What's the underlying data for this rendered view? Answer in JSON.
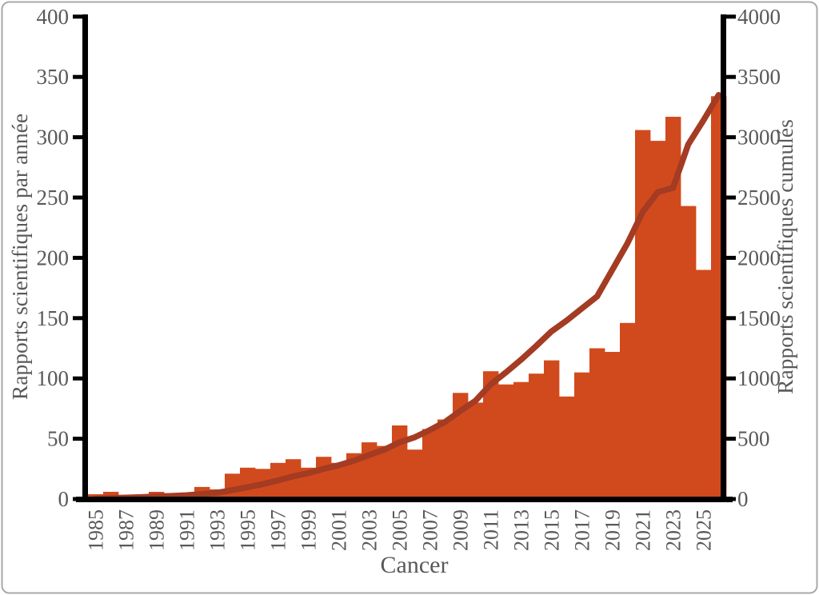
{
  "figure": {
    "x_title": "Cancer",
    "left_axis_title": "Rapports scientifiques par année",
    "right_axis_title": "Rapports scientifiques cumulés"
  },
  "chart_data": {
    "type": "bar",
    "subtype": "bar+line-combo",
    "title": "Cancer",
    "xlabel": "Cancer",
    "ylabel_left": "Rapports scientifiques par année",
    "ylabel_right": "Rapports scientifiques cumulés",
    "grid": false,
    "legend": "none",
    "categories": [
      1985,
      1986,
      1987,
      1988,
      1989,
      1990,
      1991,
      1992,
      1993,
      1994,
      1995,
      1996,
      1997,
      1998,
      1999,
      2000,
      2001,
      2002,
      2003,
      2004,
      2005,
      2006,
      2007,
      2008,
      2009,
      2010,
      2011,
      2012,
      2013,
      2014,
      2015,
      2016,
      2017,
      2018,
      2019,
      2020,
      2021,
      2022,
      2023,
      2024,
      2025,
      2026
    ],
    "x_tick_labels": [
      "1985",
      "1987",
      "1989",
      "1991",
      "1993",
      "1995",
      "1997",
      "1999",
      "2001",
      "2003",
      "2005",
      "2007",
      "2009",
      "2011",
      "2013",
      "2015",
      "2017",
      "2019",
      "2021",
      "2023",
      "2025"
    ],
    "series": [
      {
        "name": "Rapports scientifiques par année",
        "type": "bar",
        "axis": "left",
        "values": [
          4,
          6,
          3,
          3,
          6,
          4,
          5,
          10,
          8,
          21,
          26,
          25,
          30,
          33,
          26,
          35,
          30,
          38,
          47,
          44,
          61,
          41,
          58,
          66,
          88,
          80,
          106,
          95,
          97,
          104,
          115,
          85,
          105,
          125,
          122,
          146,
          306,
          297,
          317,
          243,
          190,
          334
        ]
      },
      {
        "name": "Rapports scientifiques cumulés",
        "type": "line",
        "axis": "right",
        "values": [
          3,
          8,
          12,
          16,
          21,
          26,
          32,
          42,
          52,
          74,
          98,
          124,
          154,
          188,
          214,
          250,
          280,
          318,
          365,
          410,
          470,
          512,
          572,
          640,
          730,
          815,
          950,
          1050,
          1155,
          1270,
          1390,
          1480,
          1580,
          1680,
          1900,
          2120,
          2380,
          2545,
          2580,
          2940,
          3140,
          3350
        ]
      }
    ],
    "left_axis": {
      "min": 0,
      "max": 400,
      "tick_step": 50,
      "tick_labels": [
        "0",
        "50",
        "100",
        "150",
        "200",
        "250",
        "300",
        "350",
        "400"
      ]
    },
    "right_axis": {
      "min": 0,
      "max": 4000,
      "tick_step": 500,
      "tick_labels": [
        "0",
        "500",
        "1000",
        "1500",
        "2000",
        "2500",
        "3000",
        "3500",
        "4000"
      ]
    },
    "colors": {
      "bar": "#D14A1D",
      "line": "#A43B23",
      "axis": "#000000",
      "tick_label": "#595959",
      "axis_title": "#595959",
      "border": "#A9A9A9",
      "background": "#FFFFFF"
    }
  }
}
